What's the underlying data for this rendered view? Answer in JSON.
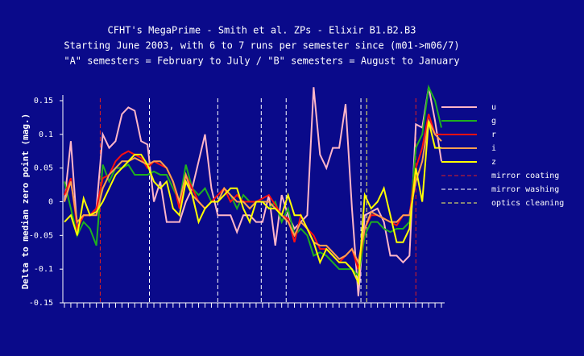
{
  "chart_data": {
    "type": "line",
    "title": "CFHT's MegaPrime - Smith et al. ZPs - Elixir B1.B2.B3",
    "subtitle": "Starting June 2003, with 6 to 7 runs per semester since (m01->m06/7)",
    "subtitle2": "\"A\" semesters = February to July / \"B\" semesters = August to January",
    "ylabel": "Delta to median zero point (mag.)",
    "ylim": [
      -0.15,
      0.15
    ],
    "yticks": [
      -0.15,
      -0.1,
      -0.05,
      0,
      0.05,
      0.1,
      0.15
    ],
    "categories": [
      null,
      null,
      null,
      null,
      null,
      null,
      null,
      null,
      null,
      null,
      null,
      null,
      null,
      null,
      null,
      null,
      null,
      null,
      null,
      null,
      null,
      null,
      null,
      null,
      null,
      null,
      null,
      null,
      null,
      null,
      null,
      null,
      null,
      null,
      null,
      null,
      null,
      null,
      null,
      null,
      null,
      null,
      null,
      null,
      null,
      null,
      null,
      null,
      null,
      null,
      null,
      null,
      null,
      null,
      null,
      null,
      null,
      null,
      null,
      null
    ],
    "series": [
      {
        "name": "u",
        "color": "#ffb6c8",
        "values": [
          0.0,
          0.09,
          -0.04,
          -0.02,
          -0.02,
          -0.01,
          0.1,
          0.08,
          0.09,
          0.13,
          0.14,
          0.135,
          0.09,
          0.085,
          0.0,
          0.03,
          -0.03,
          -0.03,
          -0.03,
          0.0,
          0.02,
          0.06,
          0.1,
          0.02,
          -0.02,
          -0.02,
          -0.02,
          -0.045,
          -0.02,
          -0.02,
          -0.03,
          -0.03,
          0.01,
          -0.065,
          0.01,
          -0.02,
          -0.04,
          -0.03,
          -0.02,
          0.17,
          0.07,
          0.05,
          0.08,
          0.08,
          0.145,
          -0.01,
          -0.14,
          -0.02,
          -0.015,
          -0.01,
          -0.03,
          -0.08,
          -0.08,
          -0.09,
          -0.08,
          0.115,
          0.11,
          0.17,
          0.12,
          0.06
        ]
      },
      {
        "name": "g",
        "color": "#1fb01f",
        "values": [
          0.03,
          -0.01,
          -0.05,
          -0.03,
          -0.04,
          -0.065,
          0.055,
          0.03,
          0.05,
          0.05,
          0.055,
          0.04,
          0.04,
          0.04,
          0.045,
          0.04,
          0.04,
          0.02,
          0.0,
          0.055,
          0.02,
          0.01,
          0.02,
          0.0,
          0.0,
          0.02,
          0.01,
          -0.01,
          0.01,
          0.0,
          0.0,
          0.0,
          -0.01,
          0.0,
          -0.03,
          -0.01,
          -0.05,
          -0.04,
          -0.05,
          -0.08,
          -0.075,
          -0.08,
          -0.09,
          -0.1,
          -0.1,
          -0.1,
          -0.11,
          -0.05,
          -0.03,
          -0.03,
          -0.04,
          -0.045,
          -0.04,
          -0.04,
          -0.03,
          0.08,
          0.1,
          0.17,
          0.15,
          0.11
        ]
      },
      {
        "name": "r",
        "color": "#ff1010",
        "values": [
          0.01,
          0.035,
          -0.04,
          -0.02,
          -0.02,
          -0.01,
          0.035,
          0.04,
          0.06,
          0.07,
          0.075,
          0.07,
          0.065,
          0.05,
          0.06,
          0.055,
          0.05,
          0.03,
          -0.01,
          0.04,
          0.02,
          0.0,
          -0.01,
          0.0,
          0.01,
          0.02,
          0.0,
          0.01,
          0.0,
          0.0,
          0.0,
          0.005,
          0.01,
          -0.005,
          -0.02,
          -0.025,
          -0.06,
          -0.02,
          -0.04,
          -0.05,
          -0.07,
          -0.07,
          -0.08,
          -0.09,
          -0.08,
          -0.07,
          -0.1,
          -0.04,
          -0.02,
          -0.02,
          -0.025,
          -0.03,
          -0.035,
          -0.02,
          -0.02,
          0.05,
          0.08,
          0.13,
          0.1,
          0.1
        ]
      },
      {
        "name": "i",
        "color": "#ffa050",
        "values": [
          0.0,
          0.03,
          -0.03,
          -0.02,
          -0.02,
          -0.02,
          0.02,
          0.04,
          0.05,
          0.06,
          0.06,
          0.065,
          0.06,
          0.055,
          0.06,
          0.06,
          0.05,
          0.03,
          0.0,
          0.04,
          0.01,
          0.0,
          -0.01,
          0.0,
          0.0,
          0.02,
          0.01,
          0.0,
          0.0,
          -0.01,
          0.0,
          0.0,
          0.0,
          -0.01,
          -0.02,
          -0.03,
          -0.05,
          -0.03,
          -0.04,
          -0.06,
          -0.065,
          -0.065,
          -0.075,
          -0.085,
          -0.08,
          -0.07,
          -0.09,
          -0.04,
          -0.015,
          -0.02,
          -0.025,
          -0.03,
          -0.03,
          -0.02,
          -0.02,
          0.03,
          0.06,
          0.12,
          0.1,
          0.09
        ]
      },
      {
        "name": "z",
        "color": "#ffff00",
        "values": [
          -0.03,
          -0.02,
          -0.05,
          0.005,
          -0.02,
          -0.015,
          0.0,
          0.02,
          0.04,
          0.05,
          0.06,
          0.07,
          0.07,
          0.055,
          0.03,
          0.02,
          0.03,
          -0.01,
          -0.02,
          0.03,
          0.01,
          -0.03,
          -0.01,
          0.0,
          0.0,
          0.01,
          0.02,
          0.02,
          -0.01,
          -0.03,
          0.0,
          0.0,
          -0.01,
          -0.01,
          -0.02,
          0.01,
          -0.02,
          -0.02,
          -0.04,
          -0.06,
          -0.09,
          -0.07,
          -0.08,
          -0.09,
          -0.09,
          -0.1,
          -0.12,
          0.01,
          -0.01,
          0.0,
          0.02,
          -0.02,
          -0.06,
          -0.06,
          -0.04,
          0.05,
          0.0,
          0.12,
          0.08,
          0.08
        ]
      }
    ],
    "events": [
      {
        "name": "mirror coating",
        "color": "#e02020",
        "positions": [
          5.6,
          55.0
        ]
      },
      {
        "name": "mirror washing",
        "color": "#ffffff",
        "positions": [
          13.3,
          24.0,
          30.8,
          34.7,
          46.4
        ]
      },
      {
        "name": "optics cleaning",
        "color": "#ffff60",
        "positions": [
          47.3
        ]
      }
    ]
  }
}
